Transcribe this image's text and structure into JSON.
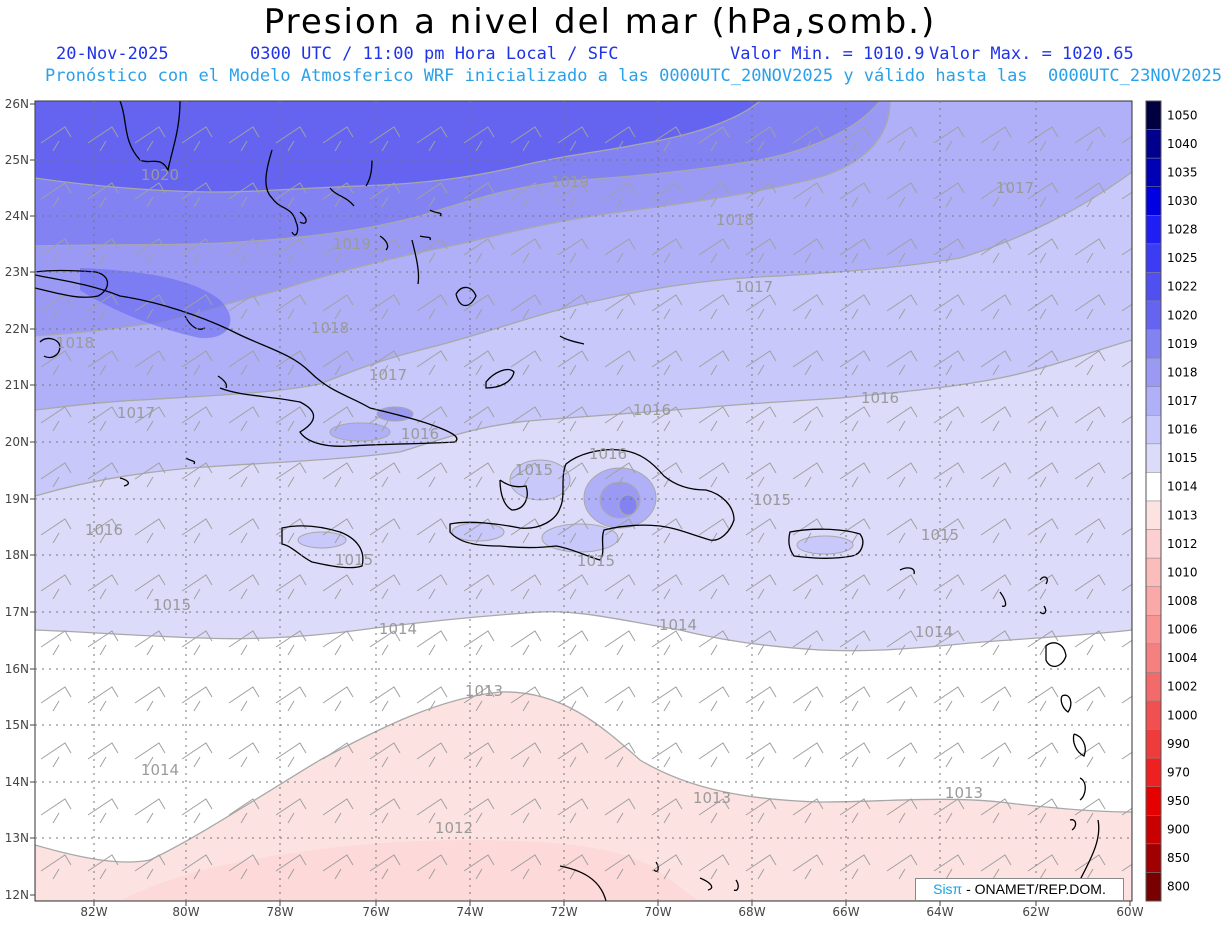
{
  "header": {
    "title": "Presion a nivel del mar (hPa,somb.)",
    "date": "20-Nov-2025",
    "time": "0300 UTC / 11:00 pm Hora Local / SFC",
    "min": "Valor Min. = 1010.9",
    "max": "Valor Max. = 1020.65",
    "model": "Pronóstico con el Modelo Atmosferico WRF inicializado a las 0000UTC_20NOV2025 y válido hasta las  0000UTC_23NOV2025"
  },
  "axes": {
    "lat_labels": [
      "26N",
      "25N",
      "24N",
      "23N",
      "22N",
      "21N",
      "20N",
      "19N",
      "18N",
      "17N",
      "16N",
      "15N",
      "14N",
      "13N",
      "12N"
    ],
    "lon_labels": [
      "82W",
      "80W",
      "78W",
      "76W",
      "74W",
      "72W",
      "70W",
      "68W",
      "66W",
      "64W",
      "62W",
      "60W"
    ]
  },
  "legend": {
    "levels": [
      "1050",
      "1040",
      "1035",
      "1030",
      "1028",
      "1025",
      "1022",
      "1020",
      "1019",
      "1018",
      "1017",
      "1016",
      "1015",
      "1014",
      "1013",
      "1012",
      "1010",
      "1008",
      "1006",
      "1004",
      "1002",
      "1000",
      "990",
      "970",
      "950",
      "900",
      "850",
      "800"
    ],
    "colors": [
      "#000040",
      "#00008c",
      "#0000b4",
      "#0000e0",
      "#1e1ef5",
      "#3c3cf5",
      "#5050f0",
      "#6464f0",
      "#8282f2",
      "#9a9af5",
      "#b0b0f8",
      "#c8c8fa",
      "#dcdcfa",
      "#ffffff",
      "#fde2e2",
      "#fcd0d0",
      "#fbbcbc",
      "#faa8a8",
      "#f89494",
      "#f58080",
      "#f26a6a",
      "#f05050",
      "#ee3c3c",
      "#ee2020",
      "#e60000",
      "#c80000",
      "#a00000",
      "#780000"
    ]
  },
  "contour_labels": [
    {
      "text": "1020"
    },
    {
      "text": "1019"
    },
    {
      "text": "1019"
    },
    {
      "text": "1018"
    },
    {
      "text": "1017"
    },
    {
      "text": "1018"
    },
    {
      "text": "1018"
    },
    {
      "text": "1017"
    },
    {
      "text": "1017"
    },
    {
      "text": "1017"
    },
    {
      "text": "1016"
    },
    {
      "text": "1016"
    },
    {
      "text": "1016"
    },
    {
      "text": "1015"
    },
    {
      "text": "1016"
    },
    {
      "text": "1015"
    },
    {
      "text": "1015"
    },
    {
      "text": "1015"
    },
    {
      "text": "1015"
    },
    {
      "text": "1016"
    },
    {
      "text": "1015"
    },
    {
      "text": "1014"
    },
    {
      "text": "1014"
    },
    {
      "text": "1014"
    },
    {
      "text": "1013"
    },
    {
      "text": "1014"
    },
    {
      "text": "1013"
    },
    {
      "text": "1013"
    },
    {
      "text": "1012"
    }
  ],
  "credit": {
    "brand": "Sisπ",
    "text": " - ONAMET/REP.DOM."
  }
}
